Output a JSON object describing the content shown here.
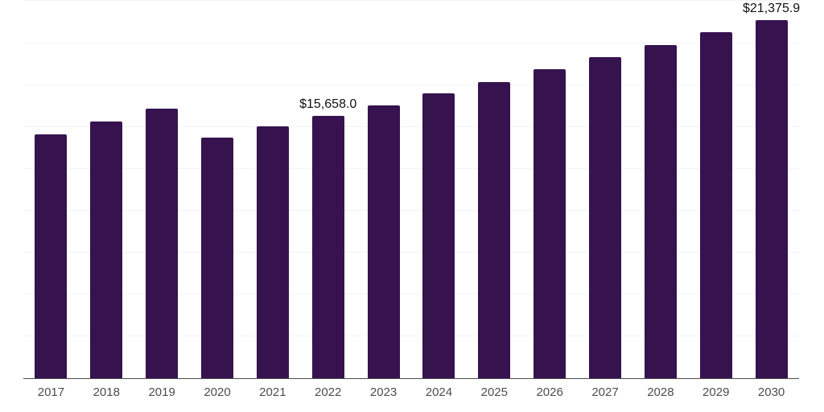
{
  "chart_data": {
    "type": "bar",
    "title": "",
    "xlabel": "",
    "ylabel": "",
    "categories": [
      "2017",
      "2018",
      "2019",
      "2020",
      "2021",
      "2022",
      "2023",
      "2024",
      "2025",
      "2026",
      "2027",
      "2028",
      "2029",
      "2030"
    ],
    "values": [
      14550,
      15310,
      16080,
      14360,
      15010,
      15658.0,
      16290,
      16990,
      17660,
      18420,
      19140,
      19860,
      20630,
      21375.9
    ],
    "data_labels": {
      "2022": "$15,658.0",
      "2030": "$21,375.9"
    },
    "ylim": [
      0,
      22570
    ],
    "gridline_step": 2500,
    "grid": "horizontal",
    "legend_position": "none",
    "colors": {
      "bar": "#36124e",
      "gridline": "#f2f2f2",
      "axis_line": "#4d4d4d",
      "tick_label": "#4d4d4d",
      "value_label": "#111111",
      "background": "#ffffff"
    }
  }
}
